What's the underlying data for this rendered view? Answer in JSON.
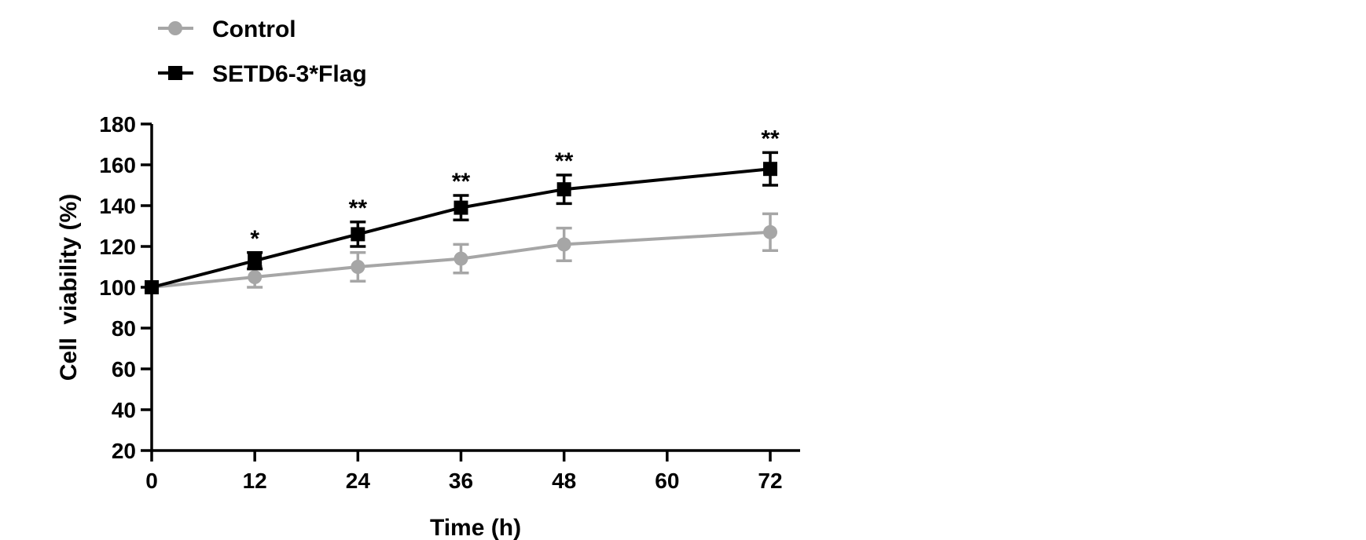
{
  "chart_data": {
    "type": "line",
    "xlabel": "Time (h)",
    "ylabel": "Cell  viability (%)",
    "xlim": [
      0,
      72
    ],
    "ylim": [
      20,
      180
    ],
    "x_ticks": [
      0,
      12,
      24,
      36,
      48,
      60,
      72
    ],
    "y_ticks": [
      20,
      40,
      60,
      80,
      100,
      120,
      140,
      160,
      180
    ],
    "grid": false,
    "legend_position": "top-left",
    "series": [
      {
        "name": "Control",
        "color": "#a6a6a6",
        "marker": "circle",
        "x": [
          0,
          12,
          24,
          36,
          48,
          72
        ],
        "values": [
          100,
          105,
          110,
          114,
          121,
          127
        ],
        "error": [
          0,
          5,
          7,
          7,
          8,
          9
        ]
      },
      {
        "name": "SETD6-3*Flag",
        "color": "#000000",
        "marker": "square",
        "x": [
          0,
          12,
          24,
          36,
          48,
          72
        ],
        "values": [
          100,
          113,
          126,
          139,
          148,
          158
        ],
        "error": [
          0,
          4,
          6,
          6,
          7,
          8
        ]
      }
    ],
    "annotations": [
      {
        "x": 12,
        "text": "*"
      },
      {
        "x": 24,
        "text": "**"
      },
      {
        "x": 36,
        "text": "**"
      },
      {
        "x": 48,
        "text": "**"
      },
      {
        "x": 72,
        "text": "**"
      }
    ]
  }
}
